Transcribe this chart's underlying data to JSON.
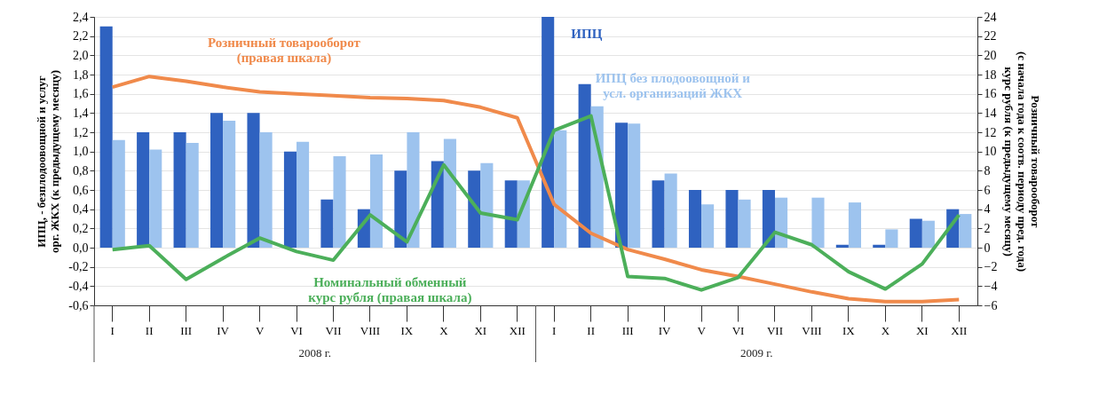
{
  "chart_data": {
    "type": "bar",
    "categories": [
      "I",
      "II",
      "III",
      "IV",
      "V",
      "VI",
      "VII",
      "VIII",
      "IX",
      "X",
      "XI",
      "XII",
      "I",
      "II",
      "III",
      "IV",
      "V",
      "VI",
      "VII",
      "VIII",
      "IX",
      "X",
      "XI",
      "XII"
    ],
    "ylabel": "ИПЦ, - безплодоовощной и услуг\nорг. ЖКХ (к предыдущему месяцу)",
    "y2label": "Розничный товарооборот\n(с начала года к соотв. периоду пред. года)\nкурс рубля (к предыдущему месяцу)",
    "ylim": [
      -0.6,
      2.4
    ],
    "yticks": [
      {
        "value": -0.6,
        "label": "-0,6"
      },
      {
        "value": -0.4,
        "label": "-0,4"
      },
      {
        "value": -0.2,
        "label": "-0,2"
      },
      {
        "value": 0,
        "label": "0,0"
      },
      {
        "value": 0.2,
        "label": "0,2"
      },
      {
        "value": 0.4,
        "label": "0,4"
      },
      {
        "value": 0.6,
        "label": "0,6"
      },
      {
        "value": 0.8,
        "label": "0,8"
      },
      {
        "value": 1.0,
        "label": "1,0"
      },
      {
        "value": 1.2,
        "label": "1,2"
      },
      {
        "value": 1.4,
        "label": "1,4"
      },
      {
        "value": 1.6,
        "label": "1,6"
      },
      {
        "value": 1.8,
        "label": "1,8"
      },
      {
        "value": 2.0,
        "label": "2,0"
      },
      {
        "value": 2.2,
        "label": "2,2"
      },
      {
        "value": 2.4,
        "label": "2,4"
      }
    ],
    "y2lim": [
      -6,
      24
    ],
    "y2ticks": [
      -6,
      -4,
      -2,
      0,
      2,
      4,
      6,
      8,
      10,
      12,
      14,
      16,
      18,
      20,
      22,
      24
    ],
    "grid": "y",
    "series": [
      {
        "name": "ИПЦ",
        "color": "#2f62c0",
        "values": [
          2.3,
          1.2,
          1.2,
          1.4,
          1.4,
          1.0,
          0.5,
          0.4,
          0.8,
          0.9,
          0.8,
          0.7,
          2.4,
          1.7,
          1.3,
          0.7,
          0.6,
          0.6,
          0.6,
          0.0,
          0.03,
          0.03,
          0.3,
          0.4
        ]
      },
      {
        "name": "ИПЦ без плодоовощной и\nусл. организаций ЖКХ",
        "color": "#9dc3ee",
        "values": [
          1.12,
          1.02,
          1.09,
          1.32,
          1.2,
          1.1,
          0.95,
          0.97,
          1.2,
          1.13,
          0.88,
          0.7,
          1.22,
          1.47,
          1.29,
          0.77,
          0.45,
          0.5,
          0.52,
          0.52,
          0.47,
          0.19,
          0.28,
          0.35
        ]
      },
      {
        "name": "Розничный товарооборот\n(правая шкала)",
        "type": "line",
        "axis": "y2",
        "color": "#f08a4b",
        "values": [
          16.7,
          17.8,
          17.3,
          16.7,
          16.2,
          16.0,
          15.8,
          15.6,
          15.5,
          15.3,
          14.6,
          13.5,
          4.5,
          1.5,
          -0.2,
          -1.2,
          -2.3,
          -3.0,
          -3.8,
          -4.6,
          -5.3,
          -5.6,
          -5.6,
          -5.4
        ]
      },
      {
        "name": "Номинальный обменный\nкурс рубля (правая шкала)",
        "type": "line",
        "axis": "y2",
        "color": "#4caf5a",
        "values": [
          -0.2,
          0.2,
          -3.3,
          -1.1,
          1.0,
          -0.4,
          -1.3,
          3.4,
          0.6,
          8.6,
          3.6,
          2.9,
          12.2,
          13.7,
          -3.0,
          -3.2,
          -4.4,
          -3.1,
          1.6,
          0.3,
          -2.5,
          -4.3,
          -1.7,
          3.4
        ]
      }
    ],
    "annotations": [
      "2008 г.",
      "2009 г."
    ]
  }
}
